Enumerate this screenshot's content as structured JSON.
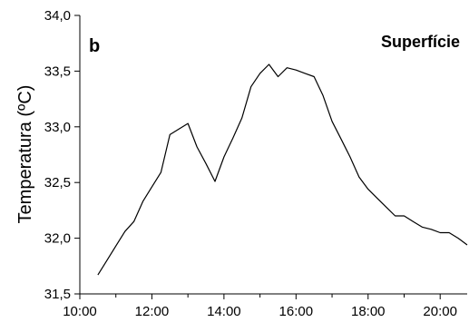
{
  "chart_data": {
    "type": "line",
    "panel_label": "b",
    "annotation": "Superfície",
    "title": "",
    "xlabel": "",
    "ylabel": "Temperatura (ºC)",
    "xlim": [
      "10:00",
      "20:45"
    ],
    "ylim": [
      31.5,
      34.0
    ],
    "x_ticks": [
      "10:00",
      "12:00",
      "14:00",
      "16:00",
      "18:00",
      "20:00"
    ],
    "y_ticks": [
      "31,5",
      "32,0",
      "32,5",
      "33,0",
      "33,5",
      "34,0"
    ],
    "grid": false,
    "legend": "none",
    "series": [
      {
        "color": "#000000",
        "x": [
          "10:30",
          "10:45",
          "11:00",
          "11:15",
          "11:30",
          "11:45",
          "12:00",
          "12:15",
          "12:30",
          "12:45",
          "13:00",
          "13:15",
          "13:30",
          "13:45",
          "14:00",
          "14:15",
          "14:30",
          "14:45",
          "15:00",
          "15:15",
          "15:30",
          "15:45",
          "16:00",
          "16:15",
          "16:30",
          "16:45",
          "17:00",
          "17:15",
          "17:30",
          "17:45",
          "18:00",
          "18:15",
          "18:30",
          "18:45",
          "19:00",
          "19:15",
          "19:30",
          "19:45",
          "20:00",
          "20:15",
          "20:30",
          "20:45"
        ],
        "y": [
          31.67,
          31.8,
          31.93,
          32.06,
          32.15,
          32.33,
          32.46,
          32.59,
          32.93,
          32.98,
          33.03,
          32.82,
          32.67,
          32.51,
          32.73,
          32.9,
          33.08,
          33.36,
          33.48,
          33.56,
          33.45,
          33.53,
          33.51,
          33.48,
          33.45,
          33.28,
          33.05,
          32.89,
          32.73,
          32.55,
          32.44,
          32.36,
          32.28,
          32.2,
          32.2,
          32.15,
          32.1,
          32.08,
          32.05,
          32.05,
          32.0,
          31.94
        ]
      }
    ]
  }
}
